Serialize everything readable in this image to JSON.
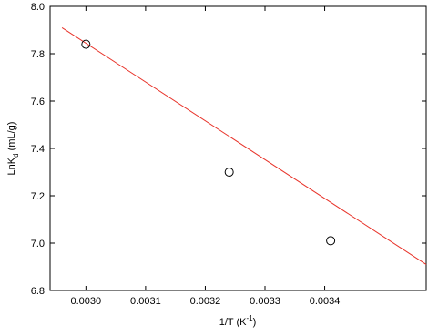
{
  "chart_data": {
    "type": "scatter",
    "x_label": [
      "1/T (K",
      "-1",
      ")"
    ],
    "y_label": [
      "LnK",
      "d",
      " (mL/g)"
    ],
    "xlim": [
      0.00294,
      0.00357
    ],
    "ylim": [
      6.8,
      8.0
    ],
    "xticks": [
      {
        "value": 0.003,
        "label": "0.0030"
      },
      {
        "value": 0.0031,
        "label": "0.0031"
      },
      {
        "value": 0.0032,
        "label": "0.0032"
      },
      {
        "value": 0.0033,
        "label": "0.0033"
      },
      {
        "value": 0.0034,
        "label": "0.0034"
      }
    ],
    "yticks": [
      {
        "value": 6.8,
        "label": "6.8"
      },
      {
        "value": 7.0,
        "label": "7.0"
      },
      {
        "value": 7.2,
        "label": "7.2"
      },
      {
        "value": 7.4,
        "label": "7.4"
      },
      {
        "value": 7.6,
        "label": "7.6"
      },
      {
        "value": 7.8,
        "label": "7.8"
      },
      {
        "value": 8.0,
        "label": "8.0"
      }
    ],
    "points": {
      "color": "#000000",
      "x": [
        0.003,
        0.00324,
        0.00341
      ],
      "values": [
        7.84,
        7.3,
        7.01
      ]
    },
    "fit": {
      "color": "#e8332a",
      "x": [
        0.00296,
        0.00357
      ],
      "values": [
        7.91,
        6.91
      ]
    }
  }
}
